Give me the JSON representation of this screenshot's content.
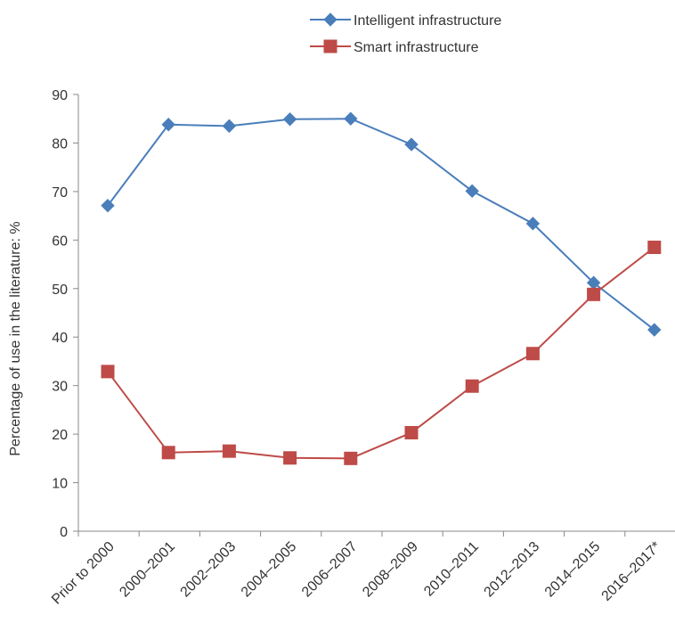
{
  "chart_data": {
    "type": "line",
    "title": "",
    "xlabel": "",
    "ylabel": "Percentage of use in the literature: %",
    "ylim": [
      0,
      90
    ],
    "yticks": [
      0,
      10,
      20,
      30,
      40,
      50,
      60,
      70,
      80,
      90
    ],
    "grid": false,
    "legend_position": "top",
    "categories": [
      "Prior to 2000",
      "2000–2001",
      "2002–2003",
      "2004–2005",
      "2006–2007",
      "2008–2009",
      "2010–2011",
      "2012–2013",
      "2014–2015",
      "2016–2017*"
    ],
    "series": [
      {
        "name": "Intelligent infrastructure",
        "color": "#4a7ebb",
        "marker": "diamond",
        "values": [
          67.1,
          83.8,
          83.5,
          84.9,
          85.0,
          79.7,
          70.1,
          63.4,
          51.2,
          41.5
        ]
      },
      {
        "name": "Smart infrastructure",
        "color": "#be4b48",
        "marker": "square",
        "values": [
          32.9,
          16.2,
          16.5,
          15.1,
          15.0,
          20.3,
          29.9,
          36.6,
          48.8,
          58.5
        ]
      }
    ]
  }
}
